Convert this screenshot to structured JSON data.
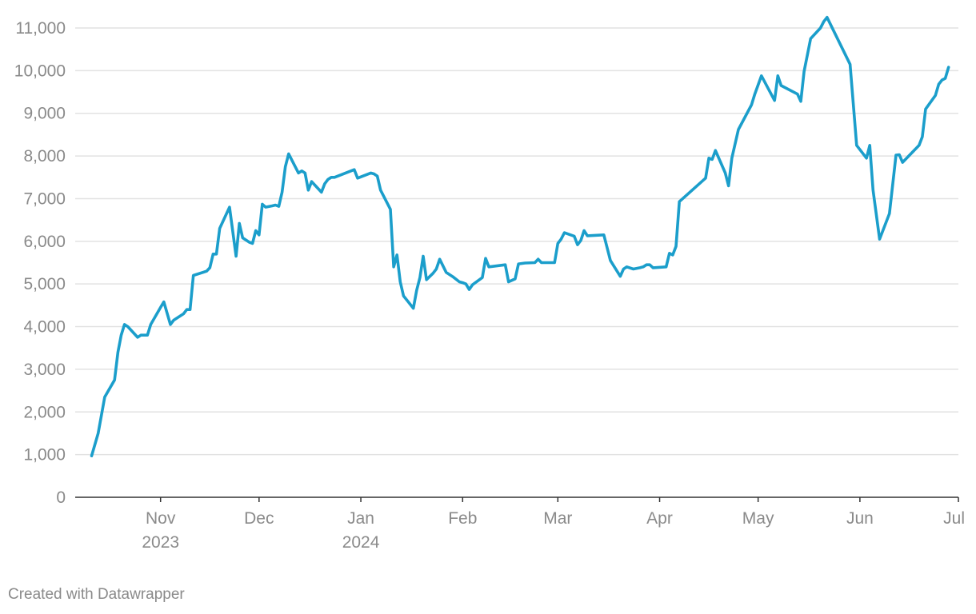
{
  "credit": "Created with Datawrapper",
  "colors": {
    "line": "#1b9ecb",
    "grid": "#e2e2e2",
    "axis": "#333333",
    "text": "#8a8a8a"
  },
  "chart_data": {
    "type": "line",
    "title": "",
    "xlabel": "",
    "ylabel": "",
    "grid": true,
    "legend": "none",
    "xlim": [
      "2023-10-06",
      "2024-07-01"
    ],
    "ylim": [
      0,
      11000
    ],
    "y_ticks": [
      0,
      1000,
      2000,
      3000,
      4000,
      5000,
      6000,
      7000,
      8000,
      9000,
      10000,
      11000
    ],
    "y_tick_labels": [
      "0",
      "1,000",
      "2,000",
      "3,000",
      "4,000",
      "5,000",
      "6,000",
      "7,000",
      "8,000",
      "9,000",
      "10,000",
      "11,000"
    ],
    "x_ticks": [
      {
        "date": "2023-11-01",
        "label": "Nov",
        "sub": "2023"
      },
      {
        "date": "2023-12-01",
        "label": "Dec",
        "sub": ""
      },
      {
        "date": "2024-01-01",
        "label": "Jan",
        "sub": "2024"
      },
      {
        "date": "2024-02-01",
        "label": "Feb",
        "sub": ""
      },
      {
        "date": "2024-03-01",
        "label": "Mar",
        "sub": ""
      },
      {
        "date": "2024-04-01",
        "label": "Apr",
        "sub": ""
      },
      {
        "date": "2024-05-01",
        "label": "May",
        "sub": ""
      },
      {
        "date": "2024-06-01",
        "label": "Jun",
        "sub": ""
      },
      {
        "date": "2024-07-01",
        "label": "Jul",
        "sub": ""
      }
    ],
    "series": [
      {
        "points": [
          [
            "2023-10-11",
            970
          ],
          [
            "2023-10-13",
            1500
          ],
          [
            "2023-10-15",
            2350
          ],
          [
            "2023-10-18",
            2750
          ],
          [
            "2023-10-19",
            3400
          ],
          [
            "2023-10-20",
            3800
          ],
          [
            "2023-10-21",
            4050
          ],
          [
            "2023-10-22",
            4000
          ],
          [
            "2023-10-25",
            3750
          ],
          [
            "2023-10-26",
            3800
          ],
          [
            "2023-10-28",
            3800
          ],
          [
            "2023-10-29",
            4050
          ],
          [
            "2023-11-01",
            4450
          ],
          [
            "2023-11-02",
            4580
          ],
          [
            "2023-11-04",
            4050
          ],
          [
            "2023-11-05",
            4150
          ],
          [
            "2023-11-08",
            4300
          ],
          [
            "2023-11-09",
            4400
          ],
          [
            "2023-11-10",
            4400
          ],
          [
            "2023-11-11",
            5200
          ],
          [
            "2023-11-15",
            5300
          ],
          [
            "2023-11-16",
            5380
          ],
          [
            "2023-11-17",
            5700
          ],
          [
            "2023-11-18",
            5700
          ],
          [
            "2023-11-19",
            6300
          ],
          [
            "2023-11-22",
            6800
          ],
          [
            "2023-11-24",
            5650
          ],
          [
            "2023-11-25",
            6420
          ],
          [
            "2023-11-26",
            6080
          ],
          [
            "2023-11-28",
            5980
          ],
          [
            "2023-11-29",
            5950
          ],
          [
            "2023-11-30",
            6250
          ],
          [
            "2023-12-01",
            6150
          ],
          [
            "2023-12-02",
            6870
          ],
          [
            "2023-12-03",
            6800
          ],
          [
            "2023-12-05",
            6830
          ],
          [
            "2023-12-06",
            6850
          ],
          [
            "2023-12-07",
            6820
          ],
          [
            "2023-12-08",
            7150
          ],
          [
            "2023-12-09",
            7750
          ],
          [
            "2023-12-10",
            8050
          ],
          [
            "2023-12-13",
            7600
          ],
          [
            "2023-12-14",
            7650
          ],
          [
            "2023-12-15",
            7600
          ],
          [
            "2023-12-16",
            7200
          ],
          [
            "2023-12-17",
            7400
          ],
          [
            "2023-12-20",
            7150
          ],
          [
            "2023-12-21",
            7350
          ],
          [
            "2023-12-22",
            7450
          ],
          [
            "2023-12-23",
            7500
          ],
          [
            "2023-12-24",
            7500
          ],
          [
            "2023-12-30",
            7680
          ],
          [
            "2023-12-31",
            7480
          ],
          [
            "2024-01-04",
            7600
          ],
          [
            "2024-01-05",
            7580
          ],
          [
            "2024-01-06",
            7530
          ],
          [
            "2024-01-07",
            7200
          ],
          [
            "2024-01-10",
            6750
          ],
          [
            "2024-01-11",
            5400
          ],
          [
            "2024-01-12",
            5680
          ],
          [
            "2024-01-13",
            5050
          ],
          [
            "2024-01-14",
            4720
          ],
          [
            "2024-01-17",
            4430
          ],
          [
            "2024-01-18",
            4850
          ],
          [
            "2024-01-19",
            5150
          ],
          [
            "2024-01-20",
            5650
          ],
          [
            "2024-01-21",
            5100
          ],
          [
            "2024-01-23",
            5250
          ],
          [
            "2024-01-24",
            5350
          ],
          [
            "2024-01-25",
            5580
          ],
          [
            "2024-01-27",
            5270
          ],
          [
            "2024-01-29",
            5170
          ],
          [
            "2024-01-31",
            5050
          ],
          [
            "2024-02-01",
            5030
          ],
          [
            "2024-02-02",
            5000
          ],
          [
            "2024-02-03",
            4870
          ],
          [
            "2024-02-04",
            4980
          ],
          [
            "2024-02-07",
            5150
          ],
          [
            "2024-02-08",
            5600
          ],
          [
            "2024-02-09",
            5400
          ],
          [
            "2024-02-14",
            5450
          ],
          [
            "2024-02-15",
            5050
          ],
          [
            "2024-02-17",
            5120
          ],
          [
            "2024-02-18",
            5470
          ],
          [
            "2024-02-20",
            5490
          ],
          [
            "2024-02-23",
            5500
          ],
          [
            "2024-02-24",
            5580
          ],
          [
            "2024-02-25",
            5500
          ],
          [
            "2024-02-29",
            5500
          ],
          [
            "2024-03-01",
            5950
          ],
          [
            "2024-03-02",
            6050
          ],
          [
            "2024-03-03",
            6200
          ],
          [
            "2024-03-06",
            6120
          ],
          [
            "2024-03-07",
            5920
          ],
          [
            "2024-03-08",
            6020
          ],
          [
            "2024-03-09",
            6250
          ],
          [
            "2024-03-10",
            6130
          ],
          [
            "2024-03-15",
            6150
          ],
          [
            "2024-03-17",
            5550
          ],
          [
            "2024-03-20",
            5180
          ],
          [
            "2024-03-21",
            5350
          ],
          [
            "2024-03-22",
            5400
          ],
          [
            "2024-03-24",
            5350
          ],
          [
            "2024-03-26",
            5380
          ],
          [
            "2024-03-27",
            5400
          ],
          [
            "2024-03-28",
            5450
          ],
          [
            "2024-03-29",
            5450
          ],
          [
            "2024-03-30",
            5380
          ],
          [
            "2024-04-03",
            5400
          ],
          [
            "2024-04-04",
            5720
          ],
          [
            "2024-04-05",
            5680
          ],
          [
            "2024-04-06",
            5880
          ],
          [
            "2024-04-07",
            6930
          ],
          [
            "2024-04-15",
            7480
          ],
          [
            "2024-04-16",
            7950
          ],
          [
            "2024-04-17",
            7920
          ],
          [
            "2024-04-18",
            8130
          ],
          [
            "2024-04-21",
            7600
          ],
          [
            "2024-04-22",
            7300
          ],
          [
            "2024-04-23",
            7950
          ],
          [
            "2024-04-25",
            8620
          ],
          [
            "2024-04-29",
            9200
          ],
          [
            "2024-04-30",
            9450
          ],
          [
            "2024-05-02",
            9880
          ],
          [
            "2024-05-06",
            9300
          ],
          [
            "2024-05-07",
            9880
          ],
          [
            "2024-05-08",
            9650
          ],
          [
            "2024-05-13",
            9450
          ],
          [
            "2024-05-14",
            9280
          ],
          [
            "2024-05-15",
            9980
          ],
          [
            "2024-05-17",
            10750
          ],
          [
            "2024-05-20",
            11000
          ],
          [
            "2024-05-21",
            11150
          ],
          [
            "2024-05-22",
            11250
          ],
          [
            "2024-05-29",
            10150
          ],
          [
            "2024-05-31",
            8250
          ],
          [
            "2024-06-03",
            7950
          ],
          [
            "2024-06-04",
            8250
          ],
          [
            "2024-06-05",
            7200
          ],
          [
            "2024-06-07",
            6050
          ],
          [
            "2024-06-10",
            6650
          ],
          [
            "2024-06-12",
            8020
          ],
          [
            "2024-06-13",
            8030
          ],
          [
            "2024-06-14",
            7850
          ],
          [
            "2024-06-19",
            8250
          ],
          [
            "2024-06-20",
            8450
          ],
          [
            "2024-06-21",
            9100
          ],
          [
            "2024-06-24",
            9420
          ],
          [
            "2024-06-25",
            9680
          ],
          [
            "2024-06-26",
            9780
          ],
          [
            "2024-06-27",
            9820
          ],
          [
            "2024-06-28",
            10080
          ]
        ]
      }
    ]
  }
}
